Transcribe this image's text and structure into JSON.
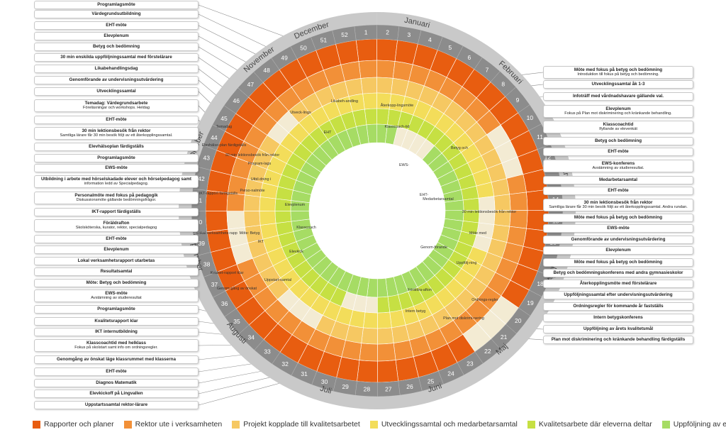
{
  "colors": {
    "rings": [
      "#e85d10",
      "#f29038",
      "#f6c862",
      "#f3dd5a",
      "#c6e043",
      "#a6dc64"
    ],
    "outer_ring": "#8c8c8c",
    "outer_ring_light": "#c9c9c9",
    "connector": "#8a8a8a"
  },
  "months": [
    {
      "label": "December"
    },
    {
      "label": "Januari"
    },
    {
      "label": "Februari"
    },
    {
      "label": "Mars"
    },
    {
      "label": "April"
    },
    {
      "label": "Maj"
    },
    {
      "label": "Juni"
    },
    {
      "label": "Juli"
    },
    {
      "label": "Augusti"
    },
    {
      "label": "September"
    },
    {
      "label": "Oktober"
    },
    {
      "label": "November"
    }
  ],
  "weeks": [
    "1",
    "2",
    "3",
    "4",
    "5",
    "6",
    "7",
    "8",
    "9",
    "10",
    "11",
    "12",
    "13",
    "14",
    "15",
    "16",
    "17",
    "18",
    "19",
    "20",
    "21",
    "22",
    "23",
    "24",
    "25",
    "26",
    "27",
    "28",
    "29",
    "30",
    "31",
    "32",
    "33",
    "34",
    "35",
    "36",
    "37",
    "38",
    "39",
    "40",
    "41",
    "42",
    "43",
    "44",
    "45",
    "46",
    "47",
    "48",
    "49",
    "50",
    "51",
    "52"
  ],
  "left_labels": [
    {
      "title": "Programlagsmöte",
      "sub": ""
    },
    {
      "title": "Värdegrundsutbildning",
      "sub": ""
    },
    {
      "title": "EHT-möte",
      "sub": ""
    },
    {
      "title": "Elevplenum",
      "sub": ""
    },
    {
      "title": "Betyg och bedömning",
      "sub": ""
    },
    {
      "title": "30 min enskilda uppföljningssamtal med förstelärare",
      "sub": ""
    },
    {
      "title": "Likabehandlingsdag",
      "sub": ""
    },
    {
      "title": "Genomförande av undervisningsutvärdering",
      "sub": ""
    },
    {
      "title": "Utvecklingssamtal",
      "sub": ""
    },
    {
      "title": "Temadag: Värdegrundsarbete",
      "sub": "Föreläsningar och workshops. Heldag"
    },
    {
      "title": "EHT-möte",
      "sub": ""
    },
    {
      "title": "30 min lektionsbesök från rektor",
      "sub": "Samtliga lärare får 30 min besök följt av ett återkopplingssamtal."
    },
    {
      "title": "Elevhälsoplan färdigställs",
      "sub": ""
    },
    {
      "title": "Programlagsmöte",
      "sub": ""
    },
    {
      "title": "EWS-möte",
      "sub": ""
    },
    {
      "title": "Utbildning i arbete med hörselskadade elever och hörselpedagog samt",
      "sub": "information ledd av Specialpedagog."
    },
    {
      "title": "Personalmöte med fokus på pedagogik",
      "sub": "Diskussionsmöte gällande bedömningsfrågor."
    },
    {
      "title": "IKT-rapport färdigställs",
      "sub": ""
    },
    {
      "title": "Föräldrafton",
      "sub": "Skolsköterska, kurator, rektor, specialpedagog"
    },
    {
      "title": "EHT-möte",
      "sub": ""
    },
    {
      "title": "Elevplenum",
      "sub": ""
    },
    {
      "title": "Lokal verksamhetsrapport utarbetas",
      "sub": ""
    },
    {
      "title": "Resultatsamtal",
      "sub": ""
    },
    {
      "title": "Möte: Betyg och bedömning",
      "sub": ""
    },
    {
      "title": "EWS-möte",
      "sub": "Avstämning av studieresultat"
    },
    {
      "title": "Programlagsmöte",
      "sub": ""
    },
    {
      "title": "Kvalitetsrapport klar",
      "sub": ""
    },
    {
      "title": "IKT internutbildning",
      "sub": ""
    },
    {
      "title": "Klasscoachtid med helklass",
      "sub": "Fokus på skolstart samt info om ordningsregler."
    },
    {
      "title": "Genomgång av önskat läge klassrummet med klasserna",
      "sub": ""
    },
    {
      "title": "EHT-möte",
      "sub": ""
    },
    {
      "title": "Diagnos Matematik",
      "sub": ""
    },
    {
      "title": "Elevkickoff på Lingvallen",
      "sub": ""
    },
    {
      "title": "Uppstartssamtal rektor-lärare",
      "sub": ""
    }
  ],
  "right_labels": [
    {
      "title": "Möte med fokus på betyg och bedömning",
      "sub": "Introduktion till fokus på betyg och bedömning."
    },
    {
      "title": "Utvecklingssamtal åk 1-3",
      "sub": ""
    },
    {
      "title": "Infoträff med vårdnadshavare gällande val.",
      "sub": ""
    },
    {
      "title": "Elevplenum",
      "sub": "Fokus på Plan mot diskriminering och kränkande behandling."
    },
    {
      "title": "Klasscoachtid",
      "sub": "Ifyllande av elevenkät"
    },
    {
      "title": "Betyg och bedömning",
      "sub": ""
    },
    {
      "title": "EHT-möte",
      "sub": ""
    },
    {
      "title": "EWS-konferens",
      "sub": "Avstämning av studieresultat."
    },
    {
      "title": "Medarbetarsamtal",
      "sub": ""
    },
    {
      "title": "EHT-möte",
      "sub": ""
    },
    {
      "title": "30 min lektionsbesök från rektor",
      "sub": "Samtliga lärare får 30 min besök följt av ett återkopplingssamtal. Andra rundan."
    },
    {
      "title": "Möte med fokus på betyg och bedömning",
      "sub": ""
    },
    {
      "title": "EWS-möte",
      "sub": ""
    },
    {
      "title": "Genomförande av undervisningsutvärdering",
      "sub": ""
    },
    {
      "title": "Elevplenum",
      "sub": ""
    },
    {
      "title": "Möte med fokus på betyg och bedömning",
      "sub": ""
    },
    {
      "title": "Betyg och bedömningskonferens med andra gymnasieskolor",
      "sub": ""
    },
    {
      "title": "Återkopplingsmöte med förstelärare",
      "sub": ""
    },
    {
      "title": "Uppföljningssamtal efter undervisningsutvärdering",
      "sub": ""
    },
    {
      "title": "Ordningsregler för kommande år fastställs",
      "sub": ""
    },
    {
      "title": "Intern betygskonferens",
      "sub": ""
    },
    {
      "title": "Uppföljning av årets kvalitetsmål",
      "sub": ""
    },
    {
      "title": "Plan mot diskriminering och kränkande behandling färdigställs",
      "sub": ""
    }
  ],
  "ring_labels": [
    {
      "text": "IKT-rapport färdigställs"
    },
    {
      "text": "Elevhälso-plan färdigställs"
    },
    {
      "text": "Lokal verksamhets-rapp"
    },
    {
      "text": "Kvalitet-rapport klar"
    },
    {
      "text": "Genom-gång av önskat"
    },
    {
      "text": "30 min lektionsbesök från rektor"
    },
    {
      "text": "Program-lags"
    },
    {
      "text": "Utbil-dning i"
    },
    {
      "text": "Perso-nalmöte"
    },
    {
      "text": "Möte: Betyg"
    },
    {
      "text": "IKT"
    },
    {
      "text": "Uppstart-samtal"
    },
    {
      "text": "EHT"
    },
    {
      "text": "Elevplenum"
    },
    {
      "text": "Klasscoach"
    },
    {
      "text": "Elevkick"
    },
    {
      "text": "Medarbetarsamtal"
    },
    {
      "text": "Möte med"
    },
    {
      "text": "Betyg och"
    },
    {
      "text": "Genom-förande"
    },
    {
      "text": "Uppfölj-ning"
    },
    {
      "text": "Ordnings-regler"
    },
    {
      "text": "Plan mot diskrimi-nering"
    },
    {
      "text": "EWS-"
    },
    {
      "text": "EHT-"
    },
    {
      "text": "Klasscoach-tid"
    },
    {
      "text": "30 min lektionsbesök från rektor"
    },
    {
      "text": "Intern betyg"
    },
    {
      "text": "Föräldra-afton"
    },
    {
      "text": "Temadag"
    },
    {
      "text": "Likabeh-andling"
    },
    {
      "text": "Utveck-lings"
    },
    {
      "text": "Återkopp-lingsmöte"
    }
  ],
  "legend": [
    {
      "label": "Rapporter och planer",
      "color": "#e85d10"
    },
    {
      "label": "Rektor ute i verksamheten",
      "color": "#f29038"
    },
    {
      "label": "Projekt kopplade till kvalitetsarbetet",
      "color": "#f6c862"
    },
    {
      "label": "Utvecklingssamtal och medarbetarsamtal",
      "color": "#f3dd5a"
    },
    {
      "label": "Kvalitetsarbete där eleverna deltar",
      "color": "#c6e043"
    },
    {
      "label": "Uppföljning av elever",
      "color": "#a6dc64"
    }
  ]
}
